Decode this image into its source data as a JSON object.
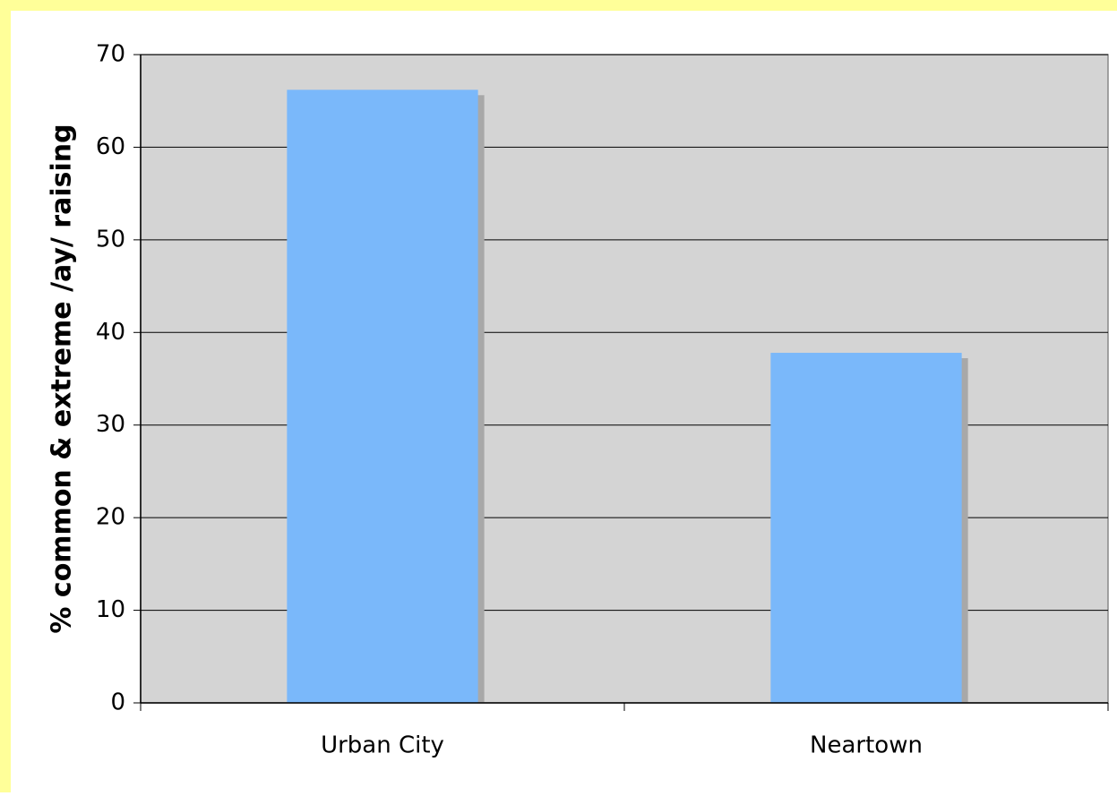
{
  "chart_data": {
    "type": "bar",
    "y_label": "% common & extreme /ay/ raising",
    "categories": [
      "Urban City",
      "Neartown"
    ],
    "values": [
      66.2,
      37.8
    ],
    "color": "#7ab8fa",
    "ylim": [
      0,
      70
    ],
    "yticks": [
      0,
      10,
      20,
      30,
      40,
      50,
      60,
      70
    ],
    "grid": true
  }
}
